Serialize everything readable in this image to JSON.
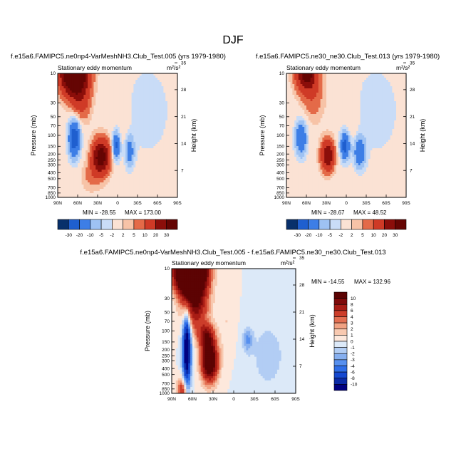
{
  "figure": {
    "title": "DJF"
  },
  "chart_data": [
    {
      "type": "heatmap",
      "title": "f.e15a6.FAMIPC5.ne0np4-VarMeshNH3.Club_Test.005 (yrs 1979-1980)",
      "subtitle": "Stationary eddy momentum",
      "units": "m²/s²",
      "xlabel": "",
      "ylabel": "Pressure (mb)",
      "y2label": "Height (km)",
      "x_ticks": [
        "90N",
        "60N",
        "30N",
        "0",
        "30S",
        "60S",
        "90S"
      ],
      "y_ticks": [
        "10",
        "30",
        "50",
        "70",
        "100",
        "150",
        "200",
        "250",
        "300",
        "400",
        "500",
        "700",
        "850",
        "1000"
      ],
      "y_ticks_values": [
        10,
        30,
        50,
        70,
        100,
        150,
        200,
        250,
        300,
        400,
        500,
        700,
        850,
        1000
      ],
      "y2_ticks": [
        "35",
        "28",
        "21",
        "14",
        "7"
      ],
      "y2_ticks_values": [
        35,
        28,
        21,
        14,
        7
      ],
      "min_label": "MIN = -28.55",
      "max_label": "MAX = 173.00",
      "min": -28.55,
      "max": 173.0,
      "colorbar_orientation": "horizontal",
      "colorbar_labels": [
        "-30",
        "-20",
        "-10",
        "-5",
        "-2",
        "2",
        "5",
        "10",
        "20",
        "30"
      ],
      "colorbar_levels": [
        -30,
        -20,
        -10,
        -5,
        -2,
        2,
        5,
        10,
        20,
        30
      ],
      "features": [
        {
          "lat": 65,
          "p": 10,
          "value": 60,
          "wlat": 14,
          "wp": 0.55
        },
        {
          "lat": 55,
          "p": 30,
          "value": 12,
          "wlat": 10,
          "wp": 0.5
        },
        {
          "lat": 65,
          "p": 110,
          "value": -28,
          "wlat": 6,
          "wp": 0.5
        },
        {
          "lat": 25,
          "p": 220,
          "value": 38,
          "wlat": 9,
          "wp": 0.45
        },
        {
          "lat": 40,
          "p": 450,
          "value": 6,
          "wlat": 10,
          "wp": 0.4
        },
        {
          "lat": 2,
          "p": 150,
          "value": -22,
          "wlat": 4,
          "wp": 0.35
        },
        {
          "lat": -18,
          "p": 180,
          "value": -14,
          "wlat": 5,
          "wp": 0.4
        },
        {
          "lat": -45,
          "p": 40,
          "value": -4,
          "wlat": 25,
          "wp": 1.2
        },
        {
          "lat": -10,
          "p": 40,
          "value": 3,
          "wlat": 6,
          "wp": 0.9
        }
      ]
    },
    {
      "type": "heatmap",
      "title": "f.e15a6.FAMIPC5.ne30_ne30.Club_Test.013 (yrs 1979-1980)",
      "subtitle": "Stationary eddy momentum",
      "units": "m²/s²",
      "xlabel": "",
      "ylabel": "Pressure (mb)",
      "y2label": "Height (km)",
      "x_ticks": [
        "90N",
        "60N",
        "30N",
        "0",
        "30S",
        "60S",
        "90S"
      ],
      "y_ticks": [
        "10",
        "30",
        "50",
        "70",
        "100",
        "150",
        "200",
        "250",
        "300",
        "400",
        "500",
        "700",
        "850",
        "1000"
      ],
      "y_ticks_values": [
        10,
        30,
        50,
        70,
        100,
        150,
        200,
        250,
        300,
        400,
        500,
        700,
        850,
        1000
      ],
      "y2_ticks": [
        "35",
        "28",
        "21",
        "14",
        "7"
      ],
      "y2_ticks_values": [
        35,
        28,
        21,
        14,
        7
      ],
      "min_label": "MIN = -28.67",
      "max_label": "MAX =  48.52",
      "min": -28.67,
      "max": 48.52,
      "colorbar_orientation": "horizontal",
      "colorbar_labels": [
        "-30",
        "-20",
        "-10",
        "-5",
        "-2",
        "2",
        "5",
        "10",
        "20",
        "30"
      ],
      "colorbar_levels": [
        -30,
        -20,
        -10,
        -5,
        -2,
        2,
        5,
        10,
        20,
        30
      ],
      "features": [
        {
          "lat": 60,
          "p": 10,
          "value": 35,
          "wlat": 11,
          "wp": 0.45
        },
        {
          "lat": 50,
          "p": 25,
          "value": 8,
          "wlat": 12,
          "wp": 0.6
        },
        {
          "lat": 68,
          "p": 110,
          "value": -20,
          "wlat": 6,
          "wp": 0.45
        },
        {
          "lat": 28,
          "p": 210,
          "value": 30,
          "wlat": 7,
          "wp": 0.4
        },
        {
          "lat": 2,
          "p": 150,
          "value": -25,
          "wlat": 5,
          "wp": 0.35
        },
        {
          "lat": -20,
          "p": 190,
          "value": -18,
          "wlat": 6,
          "wp": 0.4
        },
        {
          "lat": -45,
          "p": 40,
          "value": -4,
          "wlat": 25,
          "wp": 1.2
        },
        {
          "lat": -10,
          "p": 50,
          "value": 3,
          "wlat": 6,
          "wp": 0.9
        }
      ]
    },
    {
      "type": "heatmap",
      "title": "f.e15a6.FAMIPC5.ne0np4-VarMeshNH3.Club_Test.005 - f.e15a6.FAMIPC5.ne30_ne30.Club_Test.013",
      "subtitle": "Stationary eddy momentum",
      "units": "m²/s²",
      "xlabel": "",
      "ylabel": "Pressure (mb)",
      "y2label": "Height (km)",
      "x_ticks": [
        "90N",
        "60N",
        "30N",
        "0",
        "30S",
        "60S",
        "90S"
      ],
      "y_ticks": [
        "10",
        "30",
        "50",
        "70",
        "100",
        "150",
        "200",
        "250",
        "300",
        "400",
        "500",
        "700",
        "850",
        "1000"
      ],
      "y_ticks_values": [
        10,
        30,
        50,
        70,
        100,
        150,
        200,
        250,
        300,
        400,
        500,
        700,
        850,
        1000
      ],
      "y2_ticks": [
        "35",
        "28",
        "21",
        "14",
        "7"
      ],
      "y2_ticks_values": [
        35,
        28,
        21,
        14,
        7
      ],
      "min_label": "MIN = -14.55",
      "max_label": "MAX = 132.96",
      "min": -14.55,
      "max": 132.96,
      "colorbar_orientation": "vertical",
      "colorbar_labels": [
        "10",
        "8",
        "6",
        "4",
        "3",
        "2",
        "1",
        "0",
        "-1",
        "-2",
        "-3",
        "-4",
        "-6",
        "-8",
        "-10"
      ],
      "colorbar_levels": [
        -10,
        -8,
        -6,
        -4,
        -3,
        -2,
        -1,
        0,
        1,
        2,
        3,
        4,
        6,
        8,
        10
      ],
      "features": [
        {
          "lat": 62,
          "p": 10,
          "value": 40,
          "wlat": 14,
          "wp": 0.6
        },
        {
          "lat": 55,
          "p": 40,
          "value": 8,
          "wlat": 12,
          "wp": 0.6
        },
        {
          "lat": 68,
          "p": 200,
          "value": -14,
          "wlat": 4,
          "wp": 0.9
        },
        {
          "lat": 35,
          "p": 300,
          "value": 16,
          "wlat": 8,
          "wp": 0.5
        },
        {
          "lat": 40,
          "p": 120,
          "value": 8,
          "wlat": 8,
          "wp": 0.3
        },
        {
          "lat": 75,
          "p": 900,
          "value": 6,
          "wlat": 5,
          "wp": 0.3
        },
        {
          "lat": -20,
          "p": 140,
          "value": -3,
          "wlat": 5,
          "wp": 0.3
        },
        {
          "lat": -50,
          "p": 250,
          "value": -1.5,
          "wlat": 20,
          "wp": 1.0
        },
        {
          "lat": 10,
          "p": 70,
          "value": 1,
          "wlat": 8,
          "wp": 0.8
        }
      ]
    }
  ]
}
